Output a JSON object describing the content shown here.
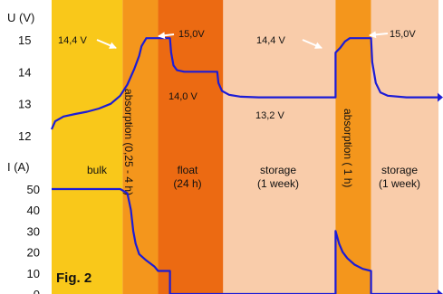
{
  "chart_data": {
    "type": "line",
    "figure_label": "Fig. 2",
    "voltage_axis": {
      "title": "U (V)",
      "ticks": [
        "15",
        "14",
        "13",
        "12"
      ],
      "range": [
        11.7,
        15.4
      ]
    },
    "current_axis": {
      "title": "I (A)",
      "ticks": [
        "50",
        "40",
        "30",
        "20",
        "10",
        "0"
      ],
      "range": [
        0,
        55
      ]
    },
    "phases": [
      {
        "id": "bulk",
        "label": "bulk",
        "label2": "",
        "color": "#f9c81a"
      },
      {
        "id": "absorption-1",
        "label": "absorption (0,25 - 4 h)",
        "label2": "",
        "color": "#f4961c",
        "vertical": true
      },
      {
        "id": "float",
        "label": "float",
        "label2": "(24 h)",
        "color": "#ec6a12"
      },
      {
        "id": "storage-1",
        "label": "storage",
        "label2": "(1 week)",
        "color": "#f9ccaa"
      },
      {
        "id": "absorption-2",
        "label": "absorption ( 1 h)",
        "label2": "",
        "color": "#f4961c",
        "vertical": true
      },
      {
        "id": "storage-2",
        "label": "storage",
        "label2": "(1 week)",
        "color": "#f9ccaa"
      }
    ],
    "annotations": [
      {
        "id": "v-14-4-first",
        "text": "14,4 V",
        "value": 14.4
      },
      {
        "id": "v-15-0-first",
        "text": "15,0V",
        "value": 15.0
      },
      {
        "id": "v-14-0",
        "text": "14,0 V",
        "value": 14.0
      },
      {
        "id": "v-13-2",
        "text": "13,2 V",
        "value": 13.2
      },
      {
        "id": "v-14-4-second",
        "text": "14,4 V",
        "value": 14.4
      },
      {
        "id": "v-15-0-second",
        "text": "15,0V",
        "value": 15.0
      }
    ],
    "series": [
      {
        "quantity": "voltage",
        "color": "#1c1cd6",
        "points": [
          [
            0,
            12.2
          ],
          [
            3,
            12.45
          ],
          [
            10,
            12.6
          ],
          [
            20,
            12.68
          ],
          [
            30,
            12.75
          ],
          [
            40,
            12.85
          ],
          [
            50,
            13.0
          ],
          [
            58,
            13.25
          ],
          [
            64,
            13.6
          ],
          [
            70,
            14.1
          ],
          [
            74,
            14.5
          ],
          [
            76,
            14.8
          ],
          [
            80,
            15.05
          ],
          [
            100,
            15.05
          ],
          [
            101,
            14.6
          ],
          [
            103,
            14.2
          ],
          [
            106,
            14.05
          ],
          [
            112,
            14.0
          ],
          [
            140,
            14.0
          ],
          [
            141,
            13.65
          ],
          [
            144,
            13.4
          ],
          [
            150,
            13.28
          ],
          [
            160,
            13.22
          ],
          [
            175,
            13.2
          ],
          [
            240,
            13.2
          ],
          [
            240,
            14.6
          ],
          [
            244,
            14.75
          ],
          [
            248,
            14.95
          ],
          [
            252,
            15.05
          ],
          [
            270,
            15.05
          ],
          [
            271,
            14.3
          ],
          [
            274,
            13.65
          ],
          [
            278,
            13.35
          ],
          [
            284,
            13.25
          ],
          [
            300,
            13.2
          ],
          [
            327,
            13.2
          ]
        ]
      },
      {
        "quantity": "current",
        "color": "#1c1cd6",
        "points": [
          [
            0,
            50
          ],
          [
            58,
            50
          ],
          [
            64,
            48
          ],
          [
            67,
            40
          ],
          [
            69,
            30
          ],
          [
            71,
            24
          ],
          [
            74,
            19
          ],
          [
            80,
            16
          ],
          [
            87,
            13
          ],
          [
            90,
            11
          ],
          [
            100,
            11
          ],
          [
            100,
            0
          ],
          [
            240,
            0
          ],
          [
            240,
            30
          ],
          [
            243,
            24
          ],
          [
            246,
            20
          ],
          [
            250,
            17
          ],
          [
            256,
            14
          ],
          [
            263,
            12
          ],
          [
            270,
            11
          ],
          [
            270,
            0
          ],
          [
            327,
            0
          ]
        ]
      }
    ]
  }
}
